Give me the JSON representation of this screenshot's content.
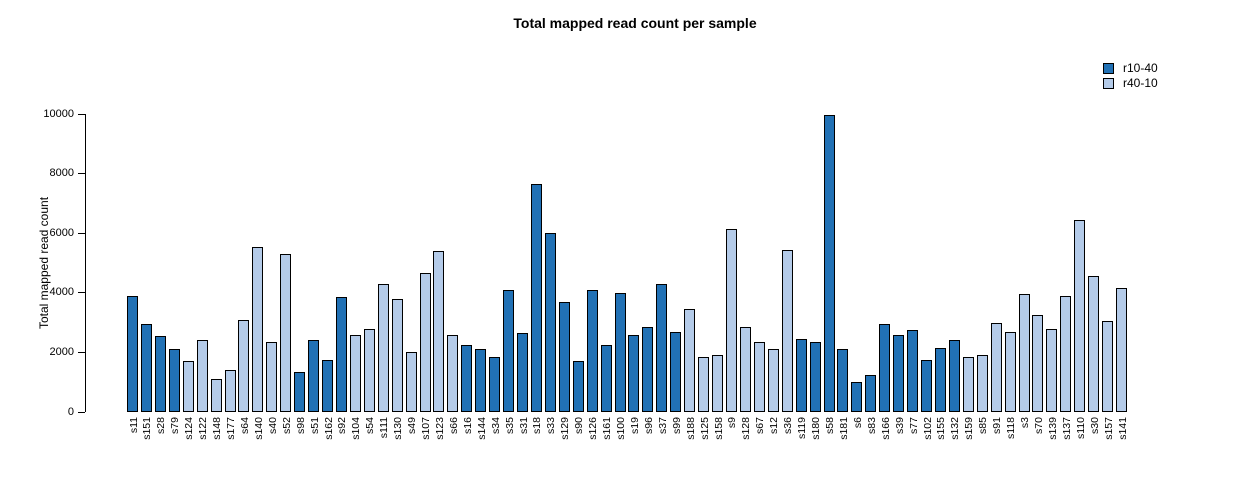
{
  "title": "Total mapped read count per sample",
  "chart_data": {
    "type": "bar",
    "title": "Total mapped read count per sample",
    "xlabel": "",
    "ylabel": "Total mapped read count",
    "ylim": [
      0,
      10000
    ],
    "yticks": [
      0,
      2000,
      4000,
      6000,
      8000,
      10000
    ],
    "grid": false,
    "legend_position": "top-right",
    "bar_edge_color": "#000000",
    "series": [
      {
        "name": "r10-40",
        "color": "#2171b5"
      },
      {
        "name": "r40-10",
        "color": "#b4cbe9"
      }
    ],
    "bars": [
      {
        "label": "s11",
        "series": "r10-40",
        "value": 3900
      },
      {
        "label": "s151",
        "series": "r10-40",
        "value": 2950
      },
      {
        "label": "s28",
        "series": "r10-40",
        "value": 2550
      },
      {
        "label": "s79",
        "series": "r10-40",
        "value": 2100
      },
      {
        "label": "s124",
        "series": "r40-10",
        "value": 1700
      },
      {
        "label": "s122",
        "series": "r40-10",
        "value": 2400
      },
      {
        "label": "s148",
        "series": "r40-10",
        "value": 1100
      },
      {
        "label": "s177",
        "series": "r40-10",
        "value": 1400
      },
      {
        "label": "s64",
        "series": "r40-10",
        "value": 3100
      },
      {
        "label": "s140",
        "series": "r40-10",
        "value": 5550
      },
      {
        "label": "s40",
        "series": "r40-10",
        "value": 2350
      },
      {
        "label": "s52",
        "series": "r40-10",
        "value": 5300
      },
      {
        "label": "s98",
        "series": "r10-40",
        "value": 1350
      },
      {
        "label": "s51",
        "series": "r10-40",
        "value": 2400
      },
      {
        "label": "s162",
        "series": "r10-40",
        "value": 1750
      },
      {
        "label": "s92",
        "series": "r10-40",
        "value": 3850
      },
      {
        "label": "s104",
        "series": "r40-10",
        "value": 2600
      },
      {
        "label": "s54",
        "series": "r40-10",
        "value": 2800
      },
      {
        "label": "s111",
        "series": "r40-10",
        "value": 4300
      },
      {
        "label": "s130",
        "series": "r40-10",
        "value": 3800
      },
      {
        "label": "s49",
        "series": "r40-10",
        "value": 2000
      },
      {
        "label": "s107",
        "series": "r40-10",
        "value": 4650
      },
      {
        "label": "s123",
        "series": "r40-10",
        "value": 5400
      },
      {
        "label": "s66",
        "series": "r40-10",
        "value": 2600
      },
      {
        "label": "s16",
        "series": "r10-40",
        "value": 2250
      },
      {
        "label": "s144",
        "series": "r10-40",
        "value": 2100
      },
      {
        "label": "s34",
        "series": "r10-40",
        "value": 1850
      },
      {
        "label": "s35",
        "series": "r10-40",
        "value": 4100
      },
      {
        "label": "s31",
        "series": "r10-40",
        "value": 2650
      },
      {
        "label": "s18",
        "series": "r10-40",
        "value": 7650
      },
      {
        "label": "s33",
        "series": "r10-40",
        "value": 6000
      },
      {
        "label": "s129",
        "series": "r10-40",
        "value": 3700
      },
      {
        "label": "s90",
        "series": "r10-40",
        "value": 1700
      },
      {
        "label": "s126",
        "series": "r10-40",
        "value": 4100
      },
      {
        "label": "s161",
        "series": "r10-40",
        "value": 2250
      },
      {
        "label": "s100",
        "series": "r10-40",
        "value": 4000
      },
      {
        "label": "s19",
        "series": "r10-40",
        "value": 2600
      },
      {
        "label": "s96",
        "series": "r10-40",
        "value": 2850
      },
      {
        "label": "s37",
        "series": "r10-40",
        "value": 4300
      },
      {
        "label": "s99",
        "series": "r10-40",
        "value": 2700
      },
      {
        "label": "s188",
        "series": "r40-10",
        "value": 3450
      },
      {
        "label": "s125",
        "series": "r40-10",
        "value": 1850
      },
      {
        "label": "s158",
        "series": "r40-10",
        "value": 1900
      },
      {
        "label": "s9",
        "series": "r40-10",
        "value": 6150
      },
      {
        "label": "s128",
        "series": "r40-10",
        "value": 2850
      },
      {
        "label": "s67",
        "series": "r40-10",
        "value": 2350
      },
      {
        "label": "s12",
        "series": "r40-10",
        "value": 2100
      },
      {
        "label": "s36",
        "series": "r40-10",
        "value": 5450
      },
      {
        "label": "s119",
        "series": "r10-40",
        "value": 2450
      },
      {
        "label": "s180",
        "series": "r10-40",
        "value": 2350
      },
      {
        "label": "s58",
        "series": "r10-40",
        "value": 9950
      },
      {
        "label": "s181",
        "series": "r10-40",
        "value": 2100
      },
      {
        "label": "s6",
        "series": "r10-40",
        "value": 1000
      },
      {
        "label": "s83",
        "series": "r10-40",
        "value": 1250
      },
      {
        "label": "s166",
        "series": "r10-40",
        "value": 2950
      },
      {
        "label": "s39",
        "series": "r10-40",
        "value": 2600
      },
      {
        "label": "s77",
        "series": "r10-40",
        "value": 2750
      },
      {
        "label": "s102",
        "series": "r10-40",
        "value": 1750
      },
      {
        "label": "s155",
        "series": "r10-40",
        "value": 2150
      },
      {
        "label": "s132",
        "series": "r10-40",
        "value": 2400
      },
      {
        "label": "s159",
        "series": "r40-10",
        "value": 1850
      },
      {
        "label": "s85",
        "series": "r40-10",
        "value": 1900
      },
      {
        "label": "s91",
        "series": "r40-10",
        "value": 3000
      },
      {
        "label": "s118",
        "series": "r40-10",
        "value": 2700
      },
      {
        "label": "s3",
        "series": "r40-10",
        "value": 3950
      },
      {
        "label": "s70",
        "series": "r40-10",
        "value": 3250
      },
      {
        "label": "s139",
        "series": "r40-10",
        "value": 2800
      },
      {
        "label": "s137",
        "series": "r40-10",
        "value": 3900
      },
      {
        "label": "s110",
        "series": "r40-10",
        "value": 6450
      },
      {
        "label": "s30",
        "series": "r40-10",
        "value": 4550
      },
      {
        "label": "s157",
        "series": "r40-10",
        "value": 3050
      },
      {
        "label": "s141",
        "series": "r40-10",
        "value": 4150
      }
    ]
  }
}
